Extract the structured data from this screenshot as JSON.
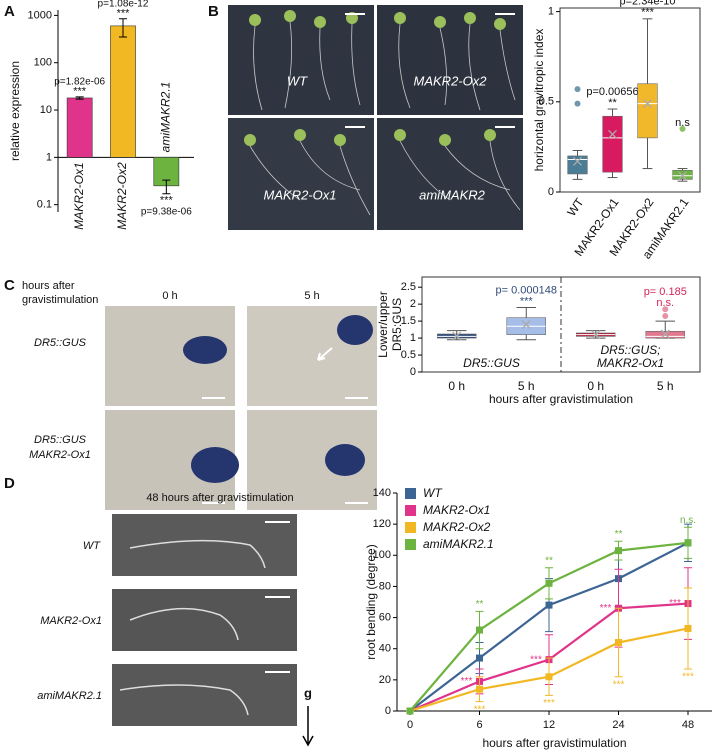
{
  "panel_labels": [
    "A",
    "B",
    "C",
    "D"
  ],
  "images": {
    "B": [
      "WT",
      "MAKR2-Ox2",
      "MAKR2-Ox1",
      "amiMAKR2"
    ],
    "C": {
      "title": [
        "hours after",
        "gravistimulation"
      ],
      "columns": [
        "0 h",
        "5 h"
      ],
      "rows": [
        [
          "DR5::GUS"
        ],
        [
          "DR5::GUS",
          "MAKR2-Ox1"
        ]
      ]
    },
    "D": {
      "title": "48 hours after gravistimulation",
      "rows": [
        "WT",
        "MAKR2-Ox1",
        "amiMAKR2.1"
      ],
      "gravity": "g"
    }
  },
  "chart_data": [
    {
      "type": "bar",
      "log_scale": true,
      "ylabel": "relative expression",
      "categories": [
        "MAKR2-Ox1",
        "MAKR2-Ox2",
        "amiMAKR2.1"
      ],
      "values": [
        18,
        600,
        0.25
      ],
      "errors": [
        1,
        250,
        0.08
      ],
      "colors": [
        "#e0338a",
        "#f2b824",
        "#6db33f"
      ],
      "base": 1,
      "p_values": [
        "p=1.82e-06",
        "p=1.08e-12",
        "p=9.38e-06"
      ],
      "significance": [
        "***",
        "***",
        "***"
      ],
      "ylim": [
        0.07,
        1300
      ],
      "yticks": [
        0.1,
        1,
        10,
        100,
        1000
      ]
    },
    {
      "type": "box",
      "frame": true,
      "ylabel": "horizontal gravitropic index",
      "categories": [
        "WT",
        "MAKR2-Ox1",
        "MAKR2-Ox2",
        "amiMAKR2.1"
      ],
      "colors": [
        "#4c7d96",
        "#d81b60",
        "#f2b82b",
        "#6db33f"
      ],
      "min": [
        0.07,
        0.08,
        0.13,
        0.06
      ],
      "q1": [
        0.1,
        0.11,
        0.3,
        0.07
      ],
      "median": [
        0.18,
        0.3,
        0.49,
        0.09
      ],
      "q3": [
        0.2,
        0.42,
        0.6,
        0.12
      ],
      "max": [
        0.23,
        0.46,
        0.96,
        0.13
      ],
      "mean": [
        0.17,
        0.32,
        0.49,
        0.09
      ],
      "outliers": [
        [
          0.57,
          0.49
        ],
        [],
        [],
        [
          0.35
        ]
      ],
      "p_values": [
        null,
        "p=0.00656",
        "p=2.34e-10",
        null
      ],
      "significance": [
        null,
        "**",
        "***",
        "n.s"
      ],
      "ylim": [
        0,
        1.02
      ],
      "yticks": [
        0,
        0.5,
        1
      ]
    },
    {
      "type": "box",
      "frame": true,
      "ylabel": [
        "Lower/upper",
        "DR5:GUS"
      ],
      "xlabel": "hours after gravistimulation",
      "categories": [
        "0 h",
        "5 h",
        "0 h",
        "5 h"
      ],
      "groups": [
        [
          "DR5::GUS"
        ],
        [
          "DR5::GUS;",
          "MAKR2-Ox1"
        ]
      ],
      "colors": [
        "#2e4a7a",
        "#a6bde8",
        "#b0183a",
        "#e07890"
      ],
      "min": [
        0.95,
        0.95,
        1.0,
        1.0
      ],
      "q1": [
        1.0,
        1.1,
        1.05,
        1.0
      ],
      "median": [
        1.05,
        1.35,
        1.1,
        1.05
      ],
      "q3": [
        1.12,
        1.6,
        1.15,
        1.2
      ],
      "max": [
        1.22,
        1.9,
        1.22,
        1.5
      ],
      "mean": [
        1.06,
        1.4,
        1.1,
        1.12
      ],
      "outliers": [
        [],
        [],
        [],
        [
          1.65,
          1.85
        ]
      ],
      "p_values": [
        null,
        "p= 0.000148",
        null,
        "p= 0.185"
      ],
      "significance": [
        null,
        "***",
        null,
        "n.s."
      ],
      "annotation_colors": [
        null,
        "#2e4a7a",
        null,
        "#d6245a"
      ],
      "ylim": [
        0,
        2.8
      ],
      "yticks": [
        0,
        0.5,
        1,
        1.5,
        2,
        2.5
      ]
    },
    {
      "type": "line",
      "ylabel": "root bending (degree)",
      "xlabel": "hours after gravistimulation",
      "legend": "upper left",
      "categories": [
        "0",
        "6",
        "12",
        "24",
        "48"
      ],
      "series": [
        {
          "name": "WT",
          "color": "#3d6594",
          "values": [
            0,
            34,
            68,
            85,
            108
          ],
          "errors": [
            0,
            10,
            17,
            18,
            12
          ],
          "significance": [
            null,
            null,
            null,
            null,
            null
          ]
        },
        {
          "name": "MAKR2-Ox1",
          "color": "#e0338a",
          "values": [
            0,
            19,
            33,
            66,
            69
          ],
          "errors": [
            0,
            8,
            16,
            25,
            23
          ],
          "significance": [
            null,
            "***",
            "***",
            "***",
            "***"
          ]
        },
        {
          "name": "MAKR2-Ox2",
          "color": "#f2b824",
          "values": [
            0,
            14,
            22,
            44,
            53
          ],
          "errors": [
            0,
            8,
            12,
            22,
            26
          ],
          "significance": [
            null,
            "***",
            "***",
            "***",
            "***"
          ]
        },
        {
          "name": "amiMAKR2.1",
          "color": "#6db33f",
          "values": [
            0,
            52,
            82,
            103,
            108
          ],
          "errors": [
            0,
            12,
            10,
            6,
            10
          ],
          "significance": [
            null,
            "**",
            "**",
            "**",
            "n.s."
          ]
        }
      ],
      "ylim": [
        0,
        140
      ],
      "yticks": [
        0,
        20,
        40,
        60,
        80,
        100,
        120,
        140
      ]
    }
  ]
}
